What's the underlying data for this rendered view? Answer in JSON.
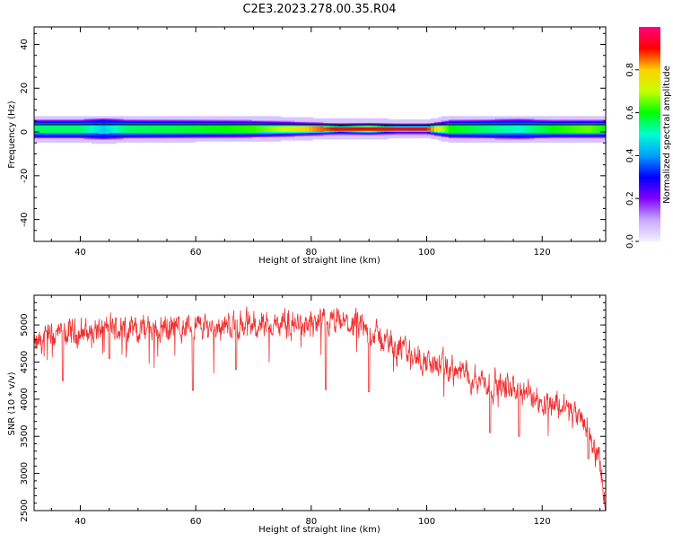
{
  "title": "C2E3.2023.278.00.35.R04",
  "colors": {
    "snr_line": "#f03030",
    "axes": "#000000",
    "background": "#ffffff",
    "colormap": [
      "#f4f0ff",
      "#c8a8ff",
      "#8000ff",
      "#0000ff",
      "#00a0ff",
      "#00ffd0",
      "#00ff00",
      "#c8ff00",
      "#ffd000",
      "#ff0000",
      "#ff0080"
    ]
  },
  "chart_data": [
    {
      "type": "heatmap",
      "name": "spectrogram",
      "xlabel": "Height of straight line (km)",
      "ylabel": "Frequency (Hz)",
      "xlim": [
        32,
        131
      ],
      "ylim": [
        -50,
        48
      ],
      "xticks": [
        "40",
        "60",
        "80",
        "100",
        "120"
      ],
      "yticks": [
        "40",
        "20",
        "0",
        "-20",
        "-40"
      ],
      "colorbar": {
        "label": "Normalized spectral amplitude",
        "range": [
          0.0,
          1.0
        ],
        "ticks": [
          "0.0",
          "0.2",
          "0.4",
          "0.6",
          "0.8"
        ]
      },
      "band_center_hz": 1.5,
      "band_profile": [
        {
          "h": 32,
          "amp": 0.55,
          "halfwidth": 3.2
        },
        {
          "h": 40,
          "amp": 0.55,
          "halfwidth": 3.2
        },
        {
          "h": 44,
          "amp": 0.45,
          "halfwidth": 3.8
        },
        {
          "h": 48,
          "amp": 0.55,
          "halfwidth": 3.2
        },
        {
          "h": 60,
          "amp": 0.58,
          "halfwidth": 3.0
        },
        {
          "h": 70,
          "amp": 0.62,
          "halfwidth": 2.8
        },
        {
          "h": 76,
          "amp": 0.72,
          "halfwidth": 2.4
        },
        {
          "h": 80,
          "amp": 0.82,
          "halfwidth": 2.0
        },
        {
          "h": 85,
          "amp": 0.92,
          "halfwidth": 1.5
        },
        {
          "h": 90,
          "amp": 0.9,
          "halfwidth": 1.8
        },
        {
          "h": 95,
          "amp": 0.92,
          "halfwidth": 1.3
        },
        {
          "h": 100,
          "amp": 0.9,
          "halfwidth": 1.3
        },
        {
          "h": 104,
          "amp": 0.6,
          "halfwidth": 3.0
        },
        {
          "h": 110,
          "amp": 0.55,
          "halfwidth": 3.2
        },
        {
          "h": 116,
          "amp": 0.5,
          "halfwidth": 3.5
        },
        {
          "h": 122,
          "amp": 0.6,
          "halfwidth": 3.0
        },
        {
          "h": 128,
          "amp": 0.65,
          "halfwidth": 3.0
        },
        {
          "h": 131,
          "amp": 0.6,
          "halfwidth": 3.0
        }
      ]
    },
    {
      "type": "line",
      "name": "snr",
      "xlabel": "Height of straight line (km)",
      "ylabel": "SNR (10 * v/v)",
      "xlim": [
        32,
        131
      ],
      "ylim": [
        2500,
        5400
      ],
      "xticks": [
        "40",
        "60",
        "80",
        "100",
        "120"
      ],
      "yticks": [
        "5000",
        "4500",
        "4000",
        "3500",
        "3000",
        "2500"
      ],
      "trend": [
        {
          "h": 32,
          "snr": 4700
        },
        {
          "h": 35,
          "snr": 4850
        },
        {
          "h": 40,
          "snr": 4900
        },
        {
          "h": 45,
          "snr": 4950
        },
        {
          "h": 50,
          "snr": 4950
        },
        {
          "h": 60,
          "snr": 4980
        },
        {
          "h": 70,
          "snr": 5000
        },
        {
          "h": 80,
          "snr": 5000
        },
        {
          "h": 86,
          "snr": 5020
        },
        {
          "h": 89,
          "snr": 4950
        },
        {
          "h": 95,
          "snr": 4700
        },
        {
          "h": 100,
          "snr": 4500
        },
        {
          "h": 106,
          "snr": 4350
        },
        {
          "h": 112,
          "snr": 4200
        },
        {
          "h": 118,
          "snr": 4050
        },
        {
          "h": 124,
          "snr": 3900
        },
        {
          "h": 128,
          "snr": 3600
        },
        {
          "h": 130,
          "snr": 3100
        },
        {
          "h": 131,
          "snr": 2550
        }
      ],
      "dips": [
        {
          "h": 37,
          "snr": 4250
        },
        {
          "h": 45,
          "snr": 4550
        },
        {
          "h": 59.5,
          "snr": 4120
        },
        {
          "h": 67,
          "snr": 4400
        },
        {
          "h": 82.5,
          "snr": 4130
        },
        {
          "h": 90,
          "snr": 4100
        },
        {
          "h": 111,
          "snr": 3550
        },
        {
          "h": 116,
          "snr": 3500
        },
        {
          "h": 128,
          "snr": 3200
        }
      ]
    }
  ]
}
